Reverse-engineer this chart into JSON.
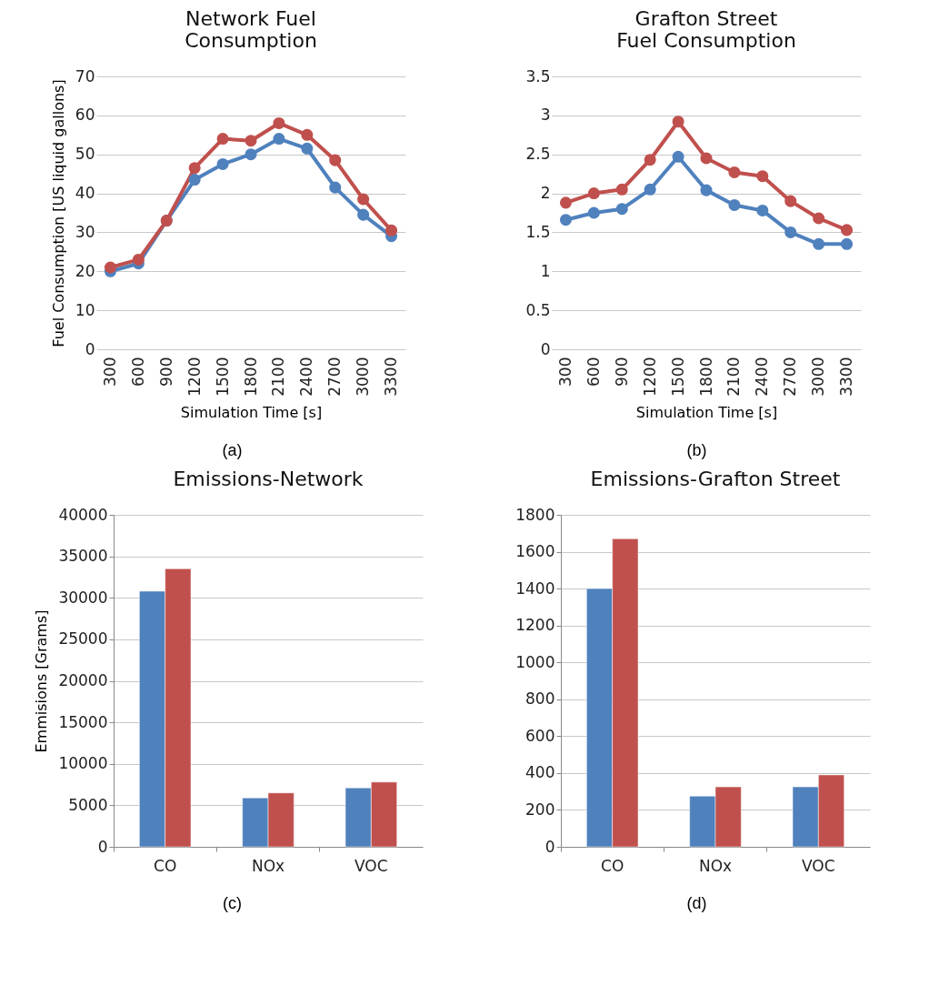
{
  "chart_data": [
    {
      "type": "line",
      "title": "Network Fuel Consumption",
      "xlabel": "Simulation Time [s]",
      "ylabel": "Fuel Consumption [US liquid gallons]",
      "categories": [
        "300",
        "600",
        "900",
        "1200",
        "1500",
        "1800",
        "2100",
        "2400",
        "2700",
        "3000",
        "3300"
      ],
      "series": [
        {
          "color": "#4f81bd",
          "values": [
            20,
            22,
            33,
            43.5,
            47.5,
            50,
            54,
            51.5,
            41.5,
            34.5,
            29
          ]
        },
        {
          "color": "#c0504d",
          "values": [
            21,
            23,
            33,
            46.5,
            54,
            53.5,
            58,
            55,
            48.5,
            38.5,
            30.5
          ]
        }
      ],
      "ylim": [
        0,
        70
      ],
      "yticks": [
        0,
        10,
        20,
        30,
        40,
        50,
        60,
        70
      ],
      "grid": "y",
      "marker": "circle",
      "legend": false,
      "annotations": [
        "(a)"
      ]
    },
    {
      "type": "line",
      "title": "Grafton Street Fuel Consumption",
      "xlabel": "Simulation Time [s]",
      "categories": [
        "300",
        "600",
        "900",
        "1200",
        "1500",
        "1800",
        "2100",
        "2400",
        "2700",
        "3000",
        "3300"
      ],
      "series": [
        {
          "color": "#4f81bd",
          "values": [
            1.66,
            1.75,
            1.8,
            2.05,
            2.47,
            2.04,
            1.85,
            1.78,
            1.5,
            1.35,
            1.35
          ]
        },
        {
          "color": "#c0504d",
          "values": [
            1.88,
            2.0,
            2.05,
            2.43,
            2.92,
            2.45,
            2.27,
            2.22,
            1.9,
            1.68,
            1.53
          ]
        }
      ],
      "ylim": [
        0,
        3.5
      ],
      "yticks": [
        0,
        0.5,
        1,
        1.5,
        2,
        2.5,
        3,
        3.5
      ],
      "grid": "y",
      "marker": "circle",
      "legend": false,
      "annotations": [
        "(b)"
      ]
    },
    {
      "type": "bar",
      "title": "Emissions-Network",
      "ylabel": "Emmisions [Grams]",
      "categories": [
        "CO",
        "NOx",
        "VOC"
      ],
      "series": [
        {
          "color": "#4f81bd",
          "values": [
            30800,
            5900,
            7100
          ]
        },
        {
          "color": "#c0504d",
          "values": [
            33500,
            6500,
            7800
          ]
        }
      ],
      "ylim": [
        0,
        40000
      ],
      "yticks": [
        0,
        5000,
        10000,
        15000,
        20000,
        25000,
        30000,
        35000,
        40000
      ],
      "grid": "y",
      "legend": false,
      "annotations": [
        "(c)"
      ]
    },
    {
      "type": "bar",
      "title": "Emissions-Grafton Street",
      "categories": [
        "CO",
        "NOx",
        "VOC"
      ],
      "series": [
        {
          "color": "#4f81bd",
          "values": [
            1400,
            275,
            325
          ]
        },
        {
          "color": "#c0504d",
          "values": [
            1670,
            325,
            390
          ]
        }
      ],
      "ylim": [
        0,
        1800
      ],
      "yticks": [
        0,
        200,
        400,
        600,
        800,
        1000,
        1200,
        1400,
        1600,
        1800
      ],
      "grid": "y",
      "legend": false,
      "annotations": [
        "(d)"
      ]
    }
  ]
}
